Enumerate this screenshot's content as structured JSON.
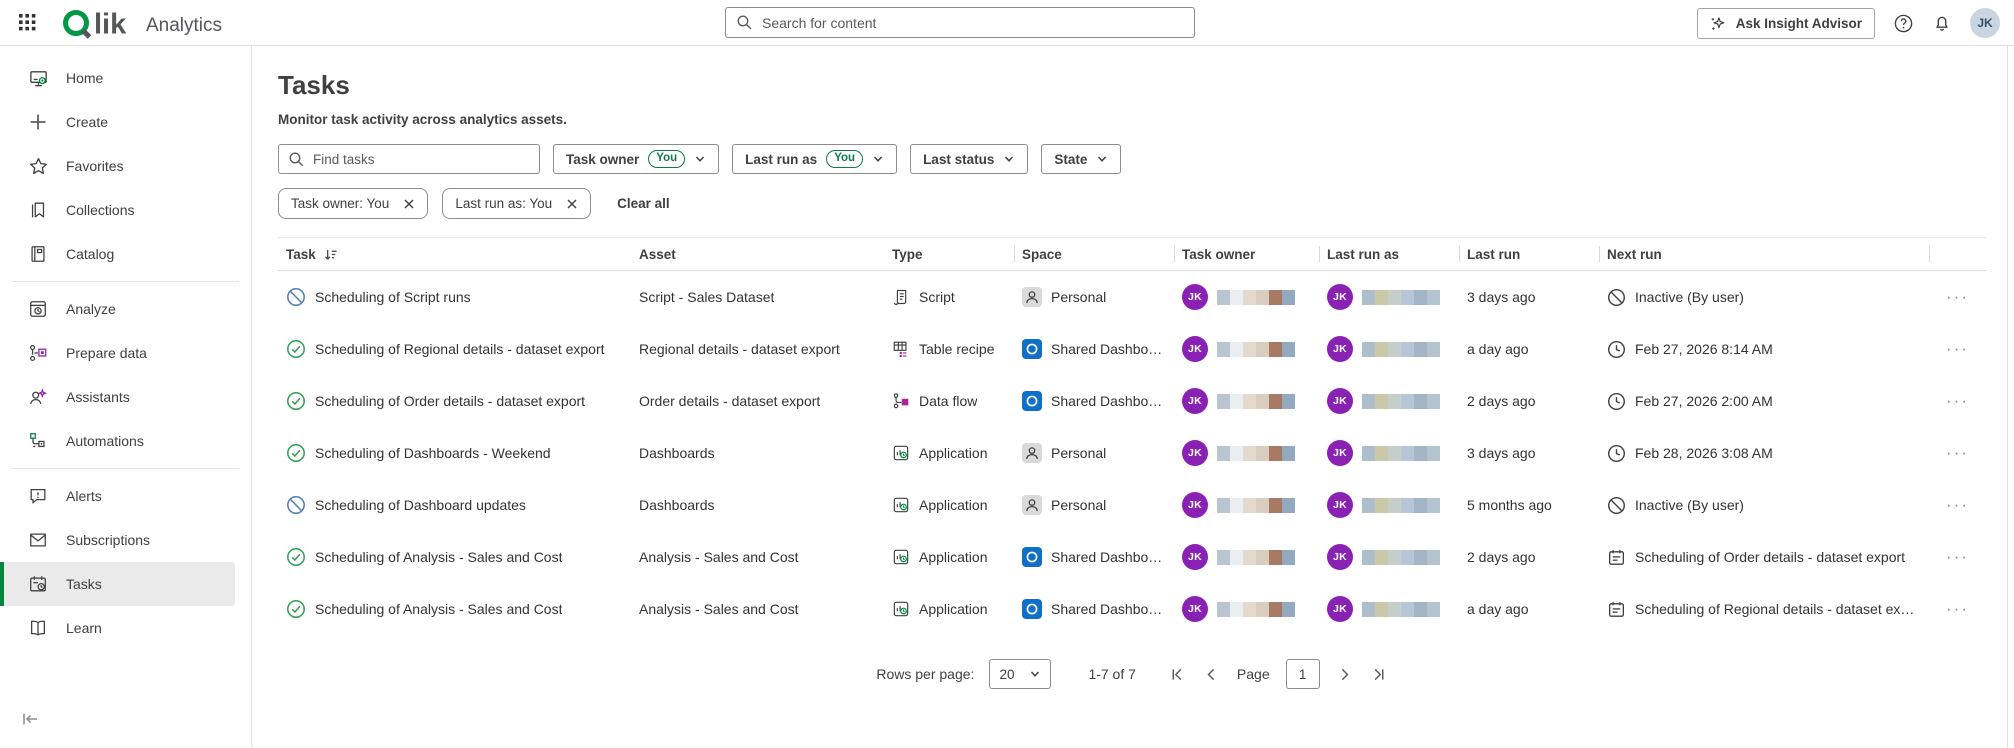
{
  "topbar": {
    "logo_text": "Qlik",
    "product": "Analytics",
    "search_placeholder": "Search for content",
    "insight_button": "Ask Insight Advisor",
    "avatar_initials": "JK"
  },
  "sidebar": {
    "groups": [
      {
        "items": [
          {
            "label": "Home",
            "icon": "home-icon"
          },
          {
            "label": "Create",
            "icon": "create-icon"
          },
          {
            "label": "Favorites",
            "icon": "favorites-icon"
          },
          {
            "label": "Collections",
            "icon": "collections-icon"
          },
          {
            "label": "Catalog",
            "icon": "catalog-icon"
          }
        ]
      },
      {
        "items": [
          {
            "label": "Analyze",
            "icon": "analyze-icon"
          },
          {
            "label": "Prepare data",
            "icon": "prepare-data-icon"
          },
          {
            "label": "Assistants",
            "icon": "assistants-icon"
          },
          {
            "label": "Automations",
            "icon": "automations-icon"
          }
        ]
      },
      {
        "items": [
          {
            "label": "Alerts",
            "icon": "alerts-icon"
          },
          {
            "label": "Subscriptions",
            "icon": "subscriptions-icon"
          },
          {
            "label": "Tasks",
            "icon": "tasks-icon",
            "active": true
          },
          {
            "label": "Learn",
            "icon": "learn-icon"
          }
        ]
      }
    ]
  },
  "page": {
    "title": "Tasks",
    "subtitle": "Monitor task activity across analytics assets.",
    "find_placeholder": "Find tasks",
    "filters": [
      {
        "label": "Task owner",
        "badge": "You"
      },
      {
        "label": "Last run as",
        "badge": "You"
      },
      {
        "label": "Last status"
      },
      {
        "label": "State"
      }
    ],
    "chips": [
      {
        "label": "Task owner: You"
      },
      {
        "label": "Last run as: You"
      }
    ],
    "clear_all": "Clear all"
  },
  "table": {
    "columns": [
      "Task",
      "Asset",
      "Type",
      "Space",
      "Task owner",
      "Last run as",
      "Last run",
      "Next run"
    ],
    "rows": [
      {
        "status_icon": "status-inactive-icon",
        "task": "Scheduling of Script runs",
        "asset": "Script - Sales Dataset",
        "type_icon": "script-icon",
        "type": "Script",
        "space_icon": "personal-space-icon",
        "space": "Personal",
        "owner_initials": "JK",
        "run_as_initials": "JK",
        "last_run": "3 days ago",
        "next_icon": "inactive-icon",
        "next_run": "Inactive (By user)"
      },
      {
        "status_icon": "status-success-icon",
        "task": "Scheduling of Regional details - dataset export",
        "asset": "Regional details - dataset export",
        "type_icon": "table-recipe-icon",
        "type": "Table recipe",
        "space_icon": "shared-space-icon",
        "space": "Shared Dashboards",
        "owner_initials": "JK",
        "run_as_initials": "JK",
        "last_run": "a day ago",
        "next_icon": "clock-icon",
        "next_run": "Feb 27, 2026 8:14 AM"
      },
      {
        "status_icon": "status-success-icon",
        "task": "Scheduling of Order details - dataset export",
        "asset": "Order details - dataset export",
        "type_icon": "data-flow-icon",
        "type": "Data flow",
        "space_icon": "shared-space-icon",
        "space": "Shared Dashboards",
        "owner_initials": "JK",
        "run_as_initials": "JK",
        "last_run": "2 days ago",
        "next_icon": "clock-icon",
        "next_run": "Feb 27, 2026 2:00 AM"
      },
      {
        "status_icon": "status-success-icon",
        "task": "Scheduling of Dashboards - Weekend",
        "asset": "Dashboards",
        "type_icon": "application-icon",
        "type": "Application",
        "space_icon": "personal-space-icon",
        "space": "Personal",
        "owner_initials": "JK",
        "run_as_initials": "JK",
        "last_run": "3 days ago",
        "next_icon": "clock-icon",
        "next_run": "Feb 28, 2026 3:08 AM"
      },
      {
        "status_icon": "status-inactive-icon",
        "task": "Scheduling of Dashboard updates",
        "asset": "Dashboards",
        "type_icon": "application-icon",
        "type": "Application",
        "space_icon": "personal-space-icon",
        "space": "Personal",
        "owner_initials": "JK",
        "run_as_initials": "JK",
        "last_run": "5 months ago",
        "next_icon": "inactive-icon",
        "next_run": "Inactive (By user)"
      },
      {
        "status_icon": "status-success-icon",
        "task": "Scheduling of Analysis - Sales and Cost",
        "asset": "Analysis - Sales and Cost",
        "type_icon": "application-icon",
        "type": "Application",
        "space_icon": "shared-space-icon",
        "space": "Shared Dashboards",
        "owner_initials": "JK",
        "run_as_initials": "JK",
        "last_run": "2 days ago",
        "next_icon": "linked-task-icon",
        "next_run": "Scheduling of Order details - dataset export"
      },
      {
        "status_icon": "status-success-icon",
        "task": "Scheduling of Analysis - Sales and Cost",
        "asset": "Analysis - Sales and Cost",
        "type_icon": "application-icon",
        "type": "Application",
        "space_icon": "shared-space-icon",
        "space": "Shared Dashboards",
        "owner_initials": "JK",
        "run_as_initials": "JK",
        "last_run": "a day ago",
        "next_icon": "linked-task-icon",
        "next_run": "Scheduling of Regional details - dataset export"
      }
    ],
    "more_glyph": "···"
  },
  "pagination": {
    "rows_per_page_label": "Rows per page:",
    "rows_per_page_value": "20",
    "range": "1-7 of 7",
    "page_label": "Page",
    "page_value": "1"
  },
  "colors": {
    "brand_green": "#009845",
    "accent_green": "#00873d",
    "badge_green": "#0d7d45",
    "success_green": "#2f9e53",
    "status_inactive_blue": "#4f7db5",
    "avatar_purple": "#8a21b5",
    "shared_space_blue": "#1070c8",
    "personal_space_gray": "#d9d9d9",
    "magenta_accent": "#a8268e",
    "owner_name_blur": [
      "#b9c6d2",
      "#e9eef1",
      "#e3d9cc",
      "#d9cdbf",
      "#a97a63",
      "#93a9bf"
    ],
    "run_as_name_blur": [
      "#adbfcc",
      "#cbc7a9",
      "#c6cecb",
      "#b6c6d6",
      "#a2b6c6",
      "#b4c4ce"
    ]
  }
}
